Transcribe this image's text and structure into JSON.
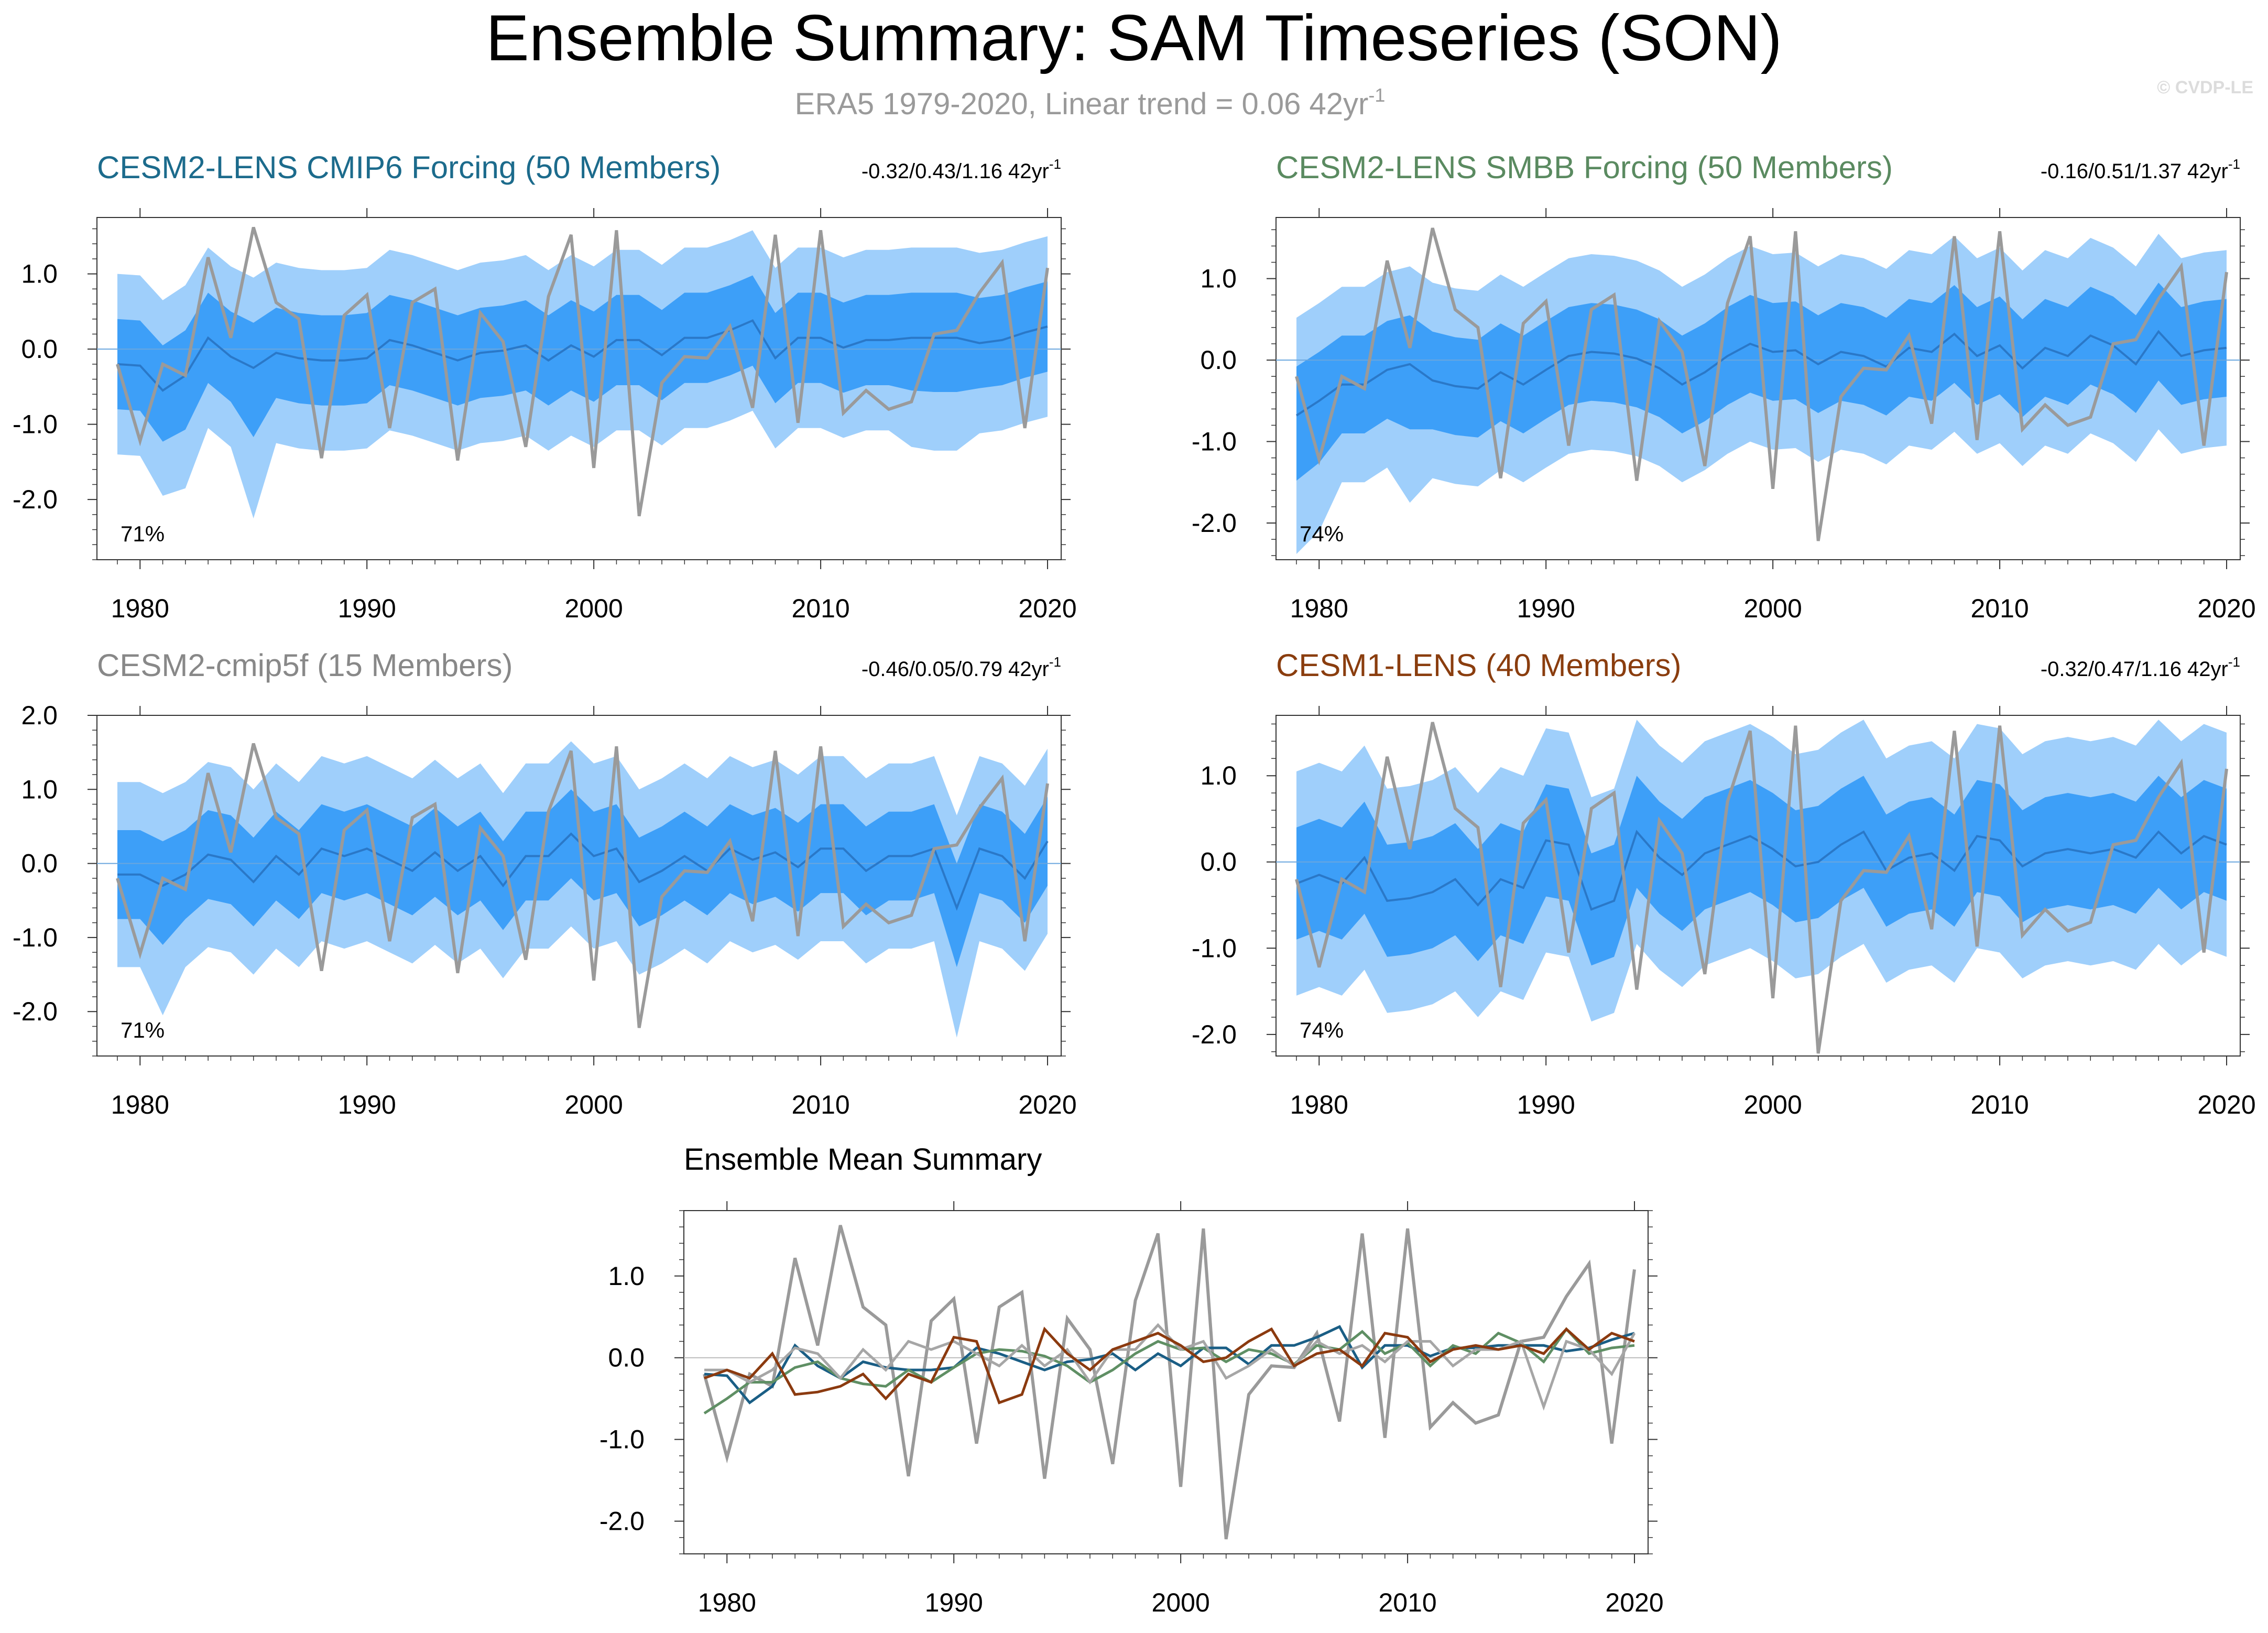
{
  "header": {
    "title": "Ensemble Summary: SAM Timeseries (SON)",
    "subtitle": "ERA5 1979-2020, Linear trend = 0.06 42yr",
    "subtitle_sup": "-1",
    "credit": "© CVDP-LE"
  },
  "colors": {
    "outer_band": "#9fcffb",
    "inner_band": "#3d9ff8",
    "ens_mean": "#2a78c8",
    "obs": "#9a9a9a",
    "title_cmip6": "#1c6b8c",
    "title_smbb": "#5a8a60",
    "title_cmip5f": "#888888",
    "title_cesm1": "#8a3d0e",
    "line_cmip6": "#1a5e85",
    "line_smbb": "#5f8f64",
    "line_cmip5f": "#a6a6a6",
    "line_cesm1": "#8b3a0f"
  },
  "chart_data": {
    "type": "line",
    "years": [
      1979,
      1980,
      1981,
      1982,
      1983,
      1984,
      1985,
      1986,
      1987,
      1988,
      1989,
      1990,
      1991,
      1992,
      1993,
      1994,
      1995,
      1996,
      1997,
      1998,
      1999,
      2000,
      2001,
      2002,
      2003,
      2004,
      2005,
      2006,
      2007,
      2008,
      2009,
      2010,
      2011,
      2012,
      2013,
      2014,
      2015,
      2016,
      2017,
      2018,
      2019,
      2020
    ],
    "xticks": [
      "1980",
      "1990",
      "2000",
      "2010",
      "2020"
    ],
    "obs_series": {
      "name": "ERA5",
      "values": [
        -0.2,
        -1.22,
        -0.2,
        -0.35,
        1.22,
        0.15,
        1.62,
        0.62,
        0.4,
        -1.45,
        0.45,
        0.72,
        -1.05,
        0.62,
        0.8,
        -1.48,
        0.48,
        0.1,
        -1.3,
        0.7,
        1.52,
        -1.58,
        1.58,
        -2.22,
        -0.45,
        -0.1,
        -0.12,
        0.3,
        -0.78,
        1.52,
        -0.98,
        1.58,
        -0.85,
        -0.55,
        -0.8,
        -0.7,
        0.2,
        0.25,
        0.75,
        1.15,
        -1.05,
        1.08
      ]
    },
    "panels": [
      {
        "title": "CESM2-LENS CMIP6 Forcing (50 Members)",
        "trend": "-0.32/0.43/1.16 42yr",
        "trend_sup": "-1",
        "percent": "71%",
        "ylim": [
          -2.8,
          1.75
        ],
        "yticks": [
          "1.0",
          "0.0",
          "-1.0",
          "-2.0"
        ],
        "yticks_values": [
          1,
          0,
          -1,
          -2
        ],
        "mean": [
          -0.2,
          -0.22,
          -0.55,
          -0.35,
          0.15,
          -0.1,
          -0.25,
          -0.05,
          -0.12,
          -0.15,
          -0.15,
          -0.12,
          0.12,
          0.05,
          -0.05,
          -0.15,
          -0.05,
          -0.02,
          0.05,
          -0.15,
          0.05,
          -0.1,
          0.12,
          0.12,
          -0.08,
          0.15,
          0.15,
          0.25,
          0.38,
          -0.12,
          0.15,
          0.15,
          0.02,
          0.12,
          0.12,
          0.15,
          0.15,
          0.15,
          0.08,
          0.12,
          0.22,
          0.3
        ],
        "inner_half": 0.6,
        "outer_half": 1.2,
        "lower_pad": [
          0,
          0,
          0.2,
          0.3,
          0,
          0,
          0.8,
          0,
          0,
          0,
          0,
          0,
          0,
          0,
          0,
          0,
          0,
          0,
          0,
          0,
          0,
          0,
          0,
          0,
          0,
          0,
          0,
          0,
          0,
          0,
          0,
          0,
          0,
          0,
          0,
          0.25,
          0.3,
          0.3,
          0,
          0,
          0,
          0
        ]
      },
      {
        "title": "CESM2-LENS SMBB Forcing (50 Members)",
        "trend": "-0.16/0.51/1.37 42yr",
        "trend_sup": "-1",
        "percent": "74%",
        "ylim": [
          -2.45,
          1.75
        ],
        "yticks": [
          "1.0",
          "0.0",
          "-1.0",
          "-2.0"
        ],
        "yticks_values": [
          1,
          0,
          -1,
          -2
        ],
        "mean": [
          -0.68,
          -0.5,
          -0.3,
          -0.3,
          -0.12,
          -0.05,
          -0.25,
          -0.32,
          -0.35,
          -0.15,
          -0.3,
          -0.12,
          0.05,
          0.1,
          0.08,
          0.02,
          -0.1,
          -0.3,
          -0.15,
          0.05,
          0.2,
          0.1,
          0.12,
          -0.05,
          0.1,
          0.05,
          -0.08,
          0.15,
          0.1,
          0.32,
          0.05,
          0.18,
          -0.1,
          0.15,
          0.05,
          0.3,
          0.18,
          -0.05,
          0.35,
          0.05,
          0.12,
          0.15
        ],
        "inner_half": 0.6,
        "outer_half": 1.2,
        "lower_pad": [
          0.5,
          0.4,
          0,
          0,
          0,
          0.5,
          0,
          0,
          0,
          0,
          0,
          0,
          0,
          0,
          0,
          0,
          0,
          0,
          0,
          0,
          0,
          0,
          0,
          0,
          0,
          0,
          0,
          0,
          0,
          0,
          0,
          0,
          0,
          0,
          0,
          0,
          0,
          0,
          0,
          0,
          0,
          0
        ]
      },
      {
        "title": "CESM2-cmip5f (15 Members)",
        "trend": "-0.46/0.05/0.79 42yr",
        "trend_sup": "-1",
        "percent": "71%",
        "ylim": [
          -2.6,
          2.0
        ],
        "yticks": [
          "2.0",
          "1.0",
          "0.0",
          "-1.0",
          "-2.0"
        ],
        "yticks_values": [
          2,
          1,
          0,
          -1,
          -2
        ],
        "mean": [
          -0.15,
          -0.15,
          -0.3,
          -0.15,
          0.12,
          0.05,
          -0.25,
          0.1,
          -0.15,
          0.2,
          0.1,
          0.2,
          0.05,
          -0.1,
          0.15,
          -0.1,
          0.1,
          -0.3,
          0.1,
          0.1,
          0.4,
          0.1,
          0.2,
          -0.25,
          -0.1,
          0.1,
          -0.1,
          0.2,
          0.05,
          0.15,
          -0.05,
          0.2,
          0.2,
          -0.1,
          0.1,
          0.1,
          0.2,
          -0.6,
          0.2,
          0.1,
          -0.2,
          0.3
        ],
        "inner_half": 0.6,
        "outer_half": 1.25,
        "lower_pad": [
          0,
          0,
          0.5,
          0,
          0,
          0,
          0,
          0,
          0,
          0,
          0,
          0,
          0,
          0,
          0,
          0,
          0,
          0,
          0,
          0,
          0,
          0,
          0,
          0,
          0,
          0,
          0,
          0,
          0,
          0,
          0,
          0,
          0,
          0,
          0,
          0,
          0,
          0.5,
          0,
          0,
          0,
          0
        ]
      },
      {
        "title": "CESM1-LENS (40 Members)",
        "trend": "-0.32/0.47/1.16 42yr",
        "trend_sup": "-1",
        "percent": "74%",
        "ylim": [
          -2.25,
          1.7
        ],
        "yticks": [
          "1.0",
          "0.0",
          "-1.0",
          "-2.0"
        ],
        "yticks_values": [
          1,
          0,
          -1,
          -2
        ],
        "mean": [
          -0.25,
          -0.15,
          -0.25,
          0.05,
          -0.45,
          -0.42,
          -0.35,
          -0.2,
          -0.5,
          -0.2,
          -0.3,
          0.25,
          0.2,
          -0.55,
          -0.45,
          0.35,
          0.05,
          -0.15,
          0.1,
          0.2,
          0.3,
          0.15,
          -0.05,
          0.0,
          0.2,
          0.35,
          -0.1,
          0.05,
          0.1,
          -0.1,
          0.3,
          0.25,
          -0.05,
          0.1,
          0.15,
          0.1,
          0.15,
          0.05,
          0.35,
          0.1,
          0.3,
          0.2
        ],
        "inner_half": 0.65,
        "outer_half": 1.3,
        "lower_pad": [
          0,
          0,
          0,
          0,
          0,
          0,
          0,
          0,
          0,
          0,
          0,
          0,
          0,
          0,
          0,
          0,
          0,
          0,
          0,
          0,
          0,
          0,
          0,
          0,
          0,
          0,
          0,
          0,
          0,
          0,
          0,
          0,
          0,
          0,
          0,
          0,
          0,
          0,
          0,
          0,
          0,
          0
        ]
      }
    ],
    "summary": {
      "title": "Ensemble Mean Summary",
      "ylim": [
        -2.4,
        1.8
      ],
      "yticks": [
        "1.0",
        "0.0",
        "-1.0",
        "-2.0"
      ],
      "yticks_values": [
        1,
        0,
        -1,
        -2
      ],
      "lines": [
        {
          "name": "CESM2-LENS CMIP6 Forcing",
          "color_key": "line_cmip6",
          "panel_index": 0
        },
        {
          "name": "CESM2-LENS SMBB Forcing",
          "color_key": "line_smbb",
          "panel_index": 1
        },
        {
          "name": "CESM2-cmip5f",
          "color_key": "line_cmip5f",
          "panel_index": 2
        },
        {
          "name": "CESM1-LENS",
          "color_key": "line_cesm1",
          "panel_index": 3
        }
      ]
    }
  }
}
